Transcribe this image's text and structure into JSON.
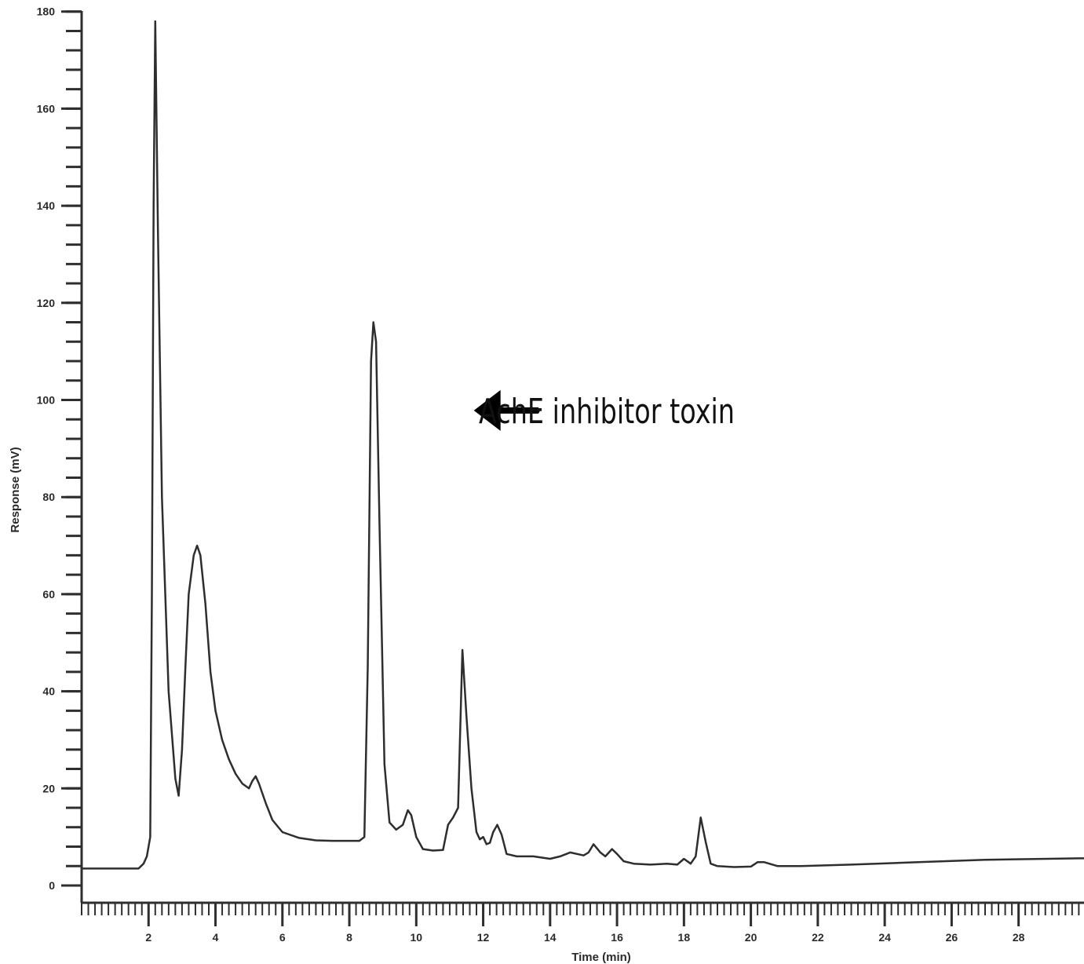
{
  "chart_data": {
    "type": "line",
    "title": "",
    "xlabel": "Time (min)",
    "ylabel": "Response (mV)",
    "xlim": [
      0,
      29.8
    ],
    "ylim": [
      -3.5,
      180
    ],
    "x_ticks": [
      2,
      4,
      6,
      8,
      10,
      12,
      14,
      16,
      18,
      20,
      22,
      24,
      26,
      28
    ],
    "y_ticks": [
      0,
      20,
      40,
      60,
      80,
      100,
      120,
      140,
      160,
      180
    ],
    "grid": false,
    "legend": "none",
    "line_color": "#2e2e2e",
    "series": [
      {
        "x": [
          0,
          1.7,
          1.85,
          1.95,
          2.05,
          2.1,
          2.15,
          2.2,
          2.28,
          2.4,
          2.6,
          2.8,
          2.9,
          3.0,
          3.1,
          3.2,
          3.35,
          3.45,
          3.55,
          3.7,
          3.85,
          4.0,
          4.2,
          4.4,
          4.6,
          4.8,
          5.0,
          5.1,
          5.2,
          5.3,
          5.5,
          5.7,
          6.0,
          6.5,
          7.0,
          7.5,
          8.0,
          8.3,
          8.45,
          8.55,
          8.65,
          8.72,
          8.8,
          8.9,
          9.05,
          9.2,
          9.4,
          9.6,
          9.75,
          9.85,
          10.0,
          10.2,
          10.5,
          10.8,
          10.95,
          11.1,
          11.25,
          11.38,
          11.5,
          11.65,
          11.8,
          11.9,
          12.0,
          12.1,
          12.2,
          12.3,
          12.42,
          12.55,
          12.7,
          13.0,
          13.5,
          14.0,
          14.3,
          14.6,
          15.0,
          15.15,
          15.3,
          15.5,
          15.65,
          15.85,
          16.0,
          16.2,
          16.5,
          17.0,
          17.5,
          17.8,
          18.0,
          18.2,
          18.35,
          18.5,
          18.65,
          18.8,
          19.0,
          19.5,
          20.0,
          20.2,
          20.4,
          20.8,
          21.5,
          23.0,
          25.0,
          27.0,
          29.8
        ],
        "y": [
          3.5,
          3.5,
          4.5,
          6,
          10,
          60,
          140,
          178,
          135,
          80,
          40,
          22,
          18.5,
          28,
          45,
          60,
          68,
          70,
          68,
          58,
          44,
          36,
          30,
          26,
          23,
          21,
          20,
          21.5,
          22.5,
          21,
          17,
          13.5,
          11,
          9.8,
          9.3,
          9.2,
          9.2,
          9.2,
          10,
          45,
          108,
          116,
          112,
          75,
          25,
          13,
          11.5,
          12.5,
          15.5,
          14.5,
          10,
          7.5,
          7.2,
          7.3,
          12.5,
          14,
          16,
          48.5,
          35,
          20,
          11,
          9.5,
          10,
          8.5,
          8.8,
          11,
          12.5,
          10.5,
          6.5,
          6.0,
          6.0,
          5.5,
          6.0,
          6.8,
          6.2,
          6.8,
          8.5,
          6.8,
          6.0,
          7.5,
          6.5,
          5.0,
          4.5,
          4.3,
          4.5,
          4.3,
          5.5,
          4.5,
          6.0,
          14.0,
          9.0,
          4.5,
          4.0,
          3.8,
          3.9,
          4.8,
          4.8,
          4.0,
          4.0,
          4.3,
          4.8,
          5.3,
          5.6
        ]
      }
    ],
    "annotations": [
      {
        "text": "AchE inhibitor toxin",
        "arrow_to": {
          "x": 9.0,
          "y": 98
        }
      }
    ]
  }
}
